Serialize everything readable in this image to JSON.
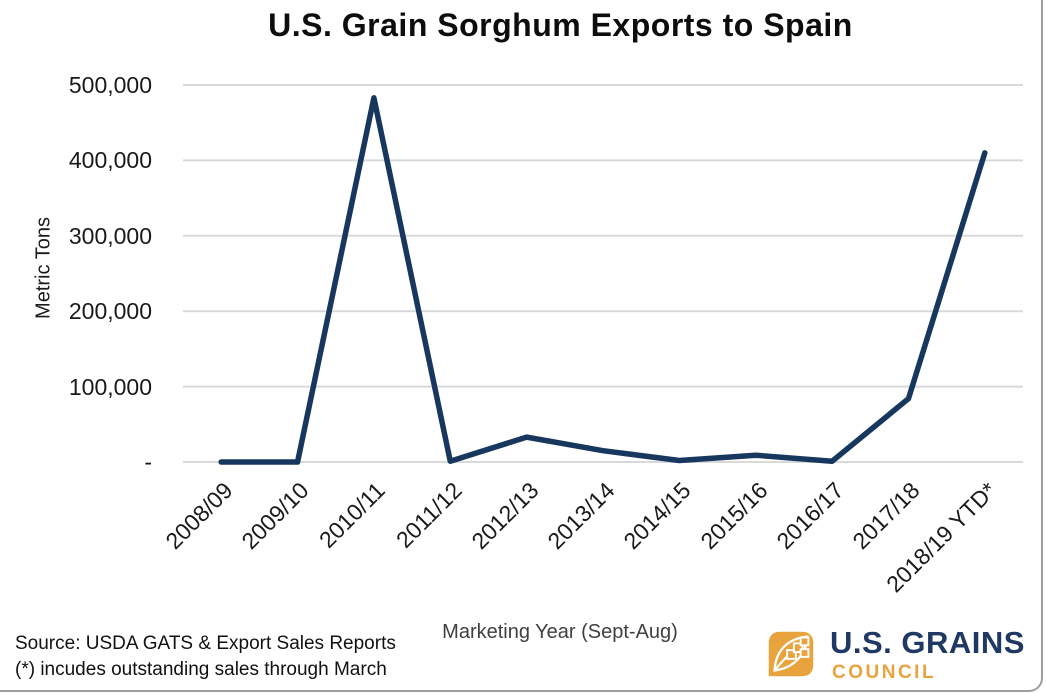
{
  "title": "U.S. Grain Sorghum Exports to Spain",
  "chart_data": {
    "type": "line",
    "title": "U.S. Grain Sorghum Exports to Spain",
    "xlabel": "Marketing Year (Sept-Aug)",
    "ylabel": "Metric Tons",
    "categories": [
      "2008/09",
      "2009/10",
      "2010/11",
      "2011/12",
      "2012/13",
      "2013/14",
      "2014/15",
      "2015/16",
      "2016/17",
      "2017/18",
      "2018/19 YTD*"
    ],
    "values": [
      0,
      0,
      483000,
      1000,
      33000,
      15000,
      2000,
      9000,
      1000,
      84000,
      410000
    ],
    "ylim": [
      0,
      500000
    ],
    "yticks": [
      {
        "value": 0,
        "label": "-"
      },
      {
        "value": 100000,
        "label": "100,000"
      },
      {
        "value": 200000,
        "label": "200,000"
      },
      {
        "value": 300000,
        "label": "300,000"
      },
      {
        "value": 400000,
        "label": "400,000"
      },
      {
        "value": 500000,
        "label": "500,000"
      }
    ],
    "grid": true,
    "legend_position": "none",
    "line_color": "#17375E",
    "gridline_color": "#D9D9D9"
  },
  "footer": {
    "source_line1": "Source: USDA GATS & Export Sales Reports",
    "source_line2": "(*) incudes outstanding sales through March"
  },
  "logo": {
    "name": "U.S. Grains Council",
    "line1": "U.S. GRAINS",
    "line2": "COUNCIL",
    "navy": "#1F3864",
    "gold": "#E8A33D"
  }
}
